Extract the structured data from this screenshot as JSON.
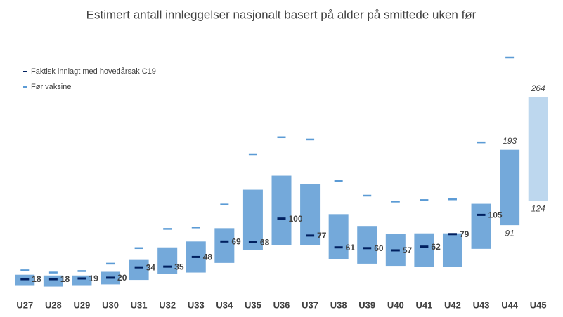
{
  "chart_data": {
    "type": "range-bar",
    "title": "Estimert antall innleggelser nasjonalt basert på alder på smittede uken før",
    "categories": [
      "U27",
      "U28",
      "U29",
      "U30",
      "U31",
      "U32",
      "U33",
      "U34",
      "U35",
      "U36",
      "U37",
      "U38",
      "U39",
      "U40",
      "U41",
      "U42",
      "U43",
      "U44",
      "U45"
    ],
    "ranges": {
      "low": [
        9,
        8,
        9,
        11,
        17,
        25,
        27,
        40,
        57,
        64,
        64,
        45,
        39,
        36,
        35,
        35,
        59,
        91,
        124
      ],
      "high": [
        24,
        23,
        23,
        28,
        44,
        61,
        69,
        87,
        139,
        158,
        147,
        106,
        90,
        79,
        80,
        80,
        120,
        193,
        264
      ],
      "colors": [
        "#74a9da",
        "#74a9da",
        "#74a9da",
        "#74a9da",
        "#74a9da",
        "#74a9da",
        "#74a9da",
        "#74a9da",
        "#74a9da",
        "#74a9da",
        "#74a9da",
        "#74a9da",
        "#74a9da",
        "#74a9da",
        "#74a9da",
        "#74a9da",
        "#74a9da",
        "#74a9da",
        "#bdd7ee"
      ]
    },
    "series": [
      {
        "name": "Faktisk innlagt med hovedårsak C19",
        "color": "#002060",
        "values": [
          18,
          18,
          19,
          20,
          34,
          35,
          48,
          69,
          68,
          100,
          77,
          61,
          60,
          57,
          62,
          79,
          105,
          null,
          null
        ]
      },
      {
        "name": "Før vaksine",
        "color": "#5b9bd5",
        "values": [
          30,
          27,
          29,
          39,
          60,
          86,
          88,
          119,
          187,
          210,
          207,
          151,
          131,
          123,
          125,
          126,
          203,
          318,
          null
        ]
      }
    ],
    "legend": "upper-left"
  }
}
